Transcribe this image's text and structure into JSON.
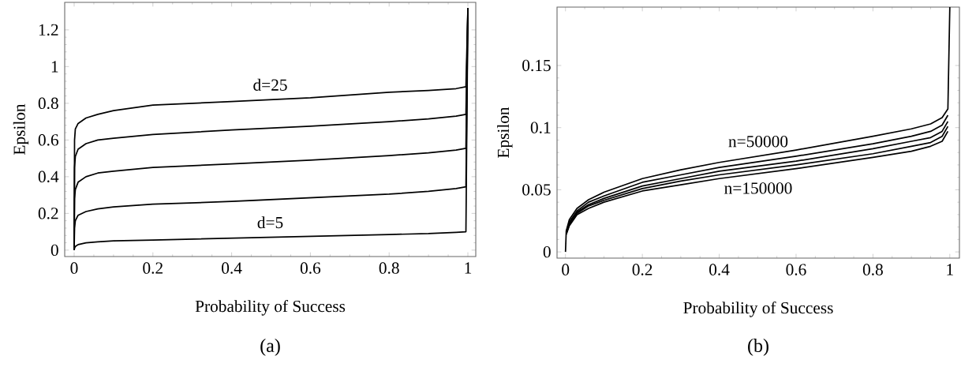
{
  "chart_data": [
    {
      "type": "line",
      "xlabel": "Probability of Success",
      "ylabel": "Epsilon",
      "xlim": [
        -0.024,
        1.02
      ],
      "ylim": [
        -0.035,
        1.35
      ],
      "xticks": [
        0,
        0.2,
        0.4,
        0.6,
        0.8,
        1
      ],
      "yticks": [
        0,
        0.2,
        0.4,
        0.6,
        0.8,
        1,
        1.2
      ],
      "grid": false,
      "marker": "none",
      "line_style": "solid",
      "x": [
        0,
        0.001,
        0.003,
        0.01,
        0.03,
        0.06,
        0.1,
        0.2,
        0.4,
        0.6,
        0.8,
        0.9,
        0.97,
        0.995,
        1
      ],
      "series": [
        {
          "name": "d=5",
          "color": "#000000",
          "values": [
            0,
            0.01,
            0.02,
            0.03,
            0.04,
            0.045,
            0.05,
            0.055,
            0.065,
            0.075,
            0.085,
            0.09,
            0.097,
            0.1,
            1.32
          ]
        },
        {
          "color": "#000000",
          "values": [
            0,
            0.12,
            0.16,
            0.19,
            0.21,
            0.225,
            0.235,
            0.25,
            0.265,
            0.285,
            0.305,
            0.32,
            0.335,
            0.345,
            1.32
          ]
        },
        {
          "color": "#000000",
          "values": [
            0,
            0.28,
            0.33,
            0.37,
            0.4,
            0.42,
            0.43,
            0.45,
            0.47,
            0.49,
            0.515,
            0.53,
            0.545,
            0.555,
            1.32
          ]
        },
        {
          "color": "#000000",
          "values": [
            0,
            0.45,
            0.51,
            0.55,
            0.58,
            0.6,
            0.61,
            0.63,
            0.655,
            0.675,
            0.7,
            0.715,
            0.73,
            0.74,
            1.32
          ]
        },
        {
          "name": "d=25",
          "color": "#000000",
          "values": [
            0,
            0.6,
            0.66,
            0.69,
            0.72,
            0.74,
            0.76,
            0.79,
            0.81,
            0.83,
            0.86,
            0.87,
            0.88,
            0.89,
            1.32
          ]
        }
      ],
      "annotations": [
        "(a)"
      ]
    },
    {
      "type": "line",
      "xlabel": "Probability of Success",
      "ylabel": "Epsilon",
      "xlim": [
        -0.022,
        1.025
      ],
      "ylim": [
        -0.005,
        0.197
      ],
      "xticks": [
        0,
        0.2,
        0.4,
        0.6,
        0.8,
        1
      ],
      "yticks": [
        0,
        0.05,
        0.1,
        0.15
      ],
      "grid": false,
      "marker": "none",
      "line_style": "solid",
      "x": [
        0,
        0.002,
        0.01,
        0.03,
        0.06,
        0.1,
        0.2,
        0.3,
        0.4,
        0.6,
        0.8,
        0.9,
        0.95,
        0.98,
        0.995,
        1
      ],
      "series": [
        {
          "name": "n=50000",
          "color": "#000000",
          "values": [
            0,
            0.017,
            0.026,
            0.035,
            0.042,
            0.048,
            0.059,
            0.066,
            0.072,
            0.082,
            0.093,
            0.099,
            0.103,
            0.108,
            0.115,
            0.197
          ]
        },
        {
          "color": "#000000",
          "values": [
            null,
            0.016,
            0.024,
            0.033,
            0.04,
            0.045,
            0.056,
            0.062,
            0.068,
            0.077,
            0.087,
            0.093,
            0.097,
            0.102,
            0.11,
            null
          ]
        },
        {
          "color": "#000000",
          "values": [
            null,
            0.015,
            0.023,
            0.032,
            0.038,
            0.043,
            0.053,
            0.059,
            0.065,
            0.073,
            0.083,
            0.089,
            0.092,
            0.097,
            0.105,
            null
          ]
        },
        {
          "color": "#000000",
          "values": [
            null,
            0.0145,
            0.022,
            0.031,
            0.037,
            0.0415,
            0.051,
            0.057,
            0.062,
            0.07,
            0.079,
            0.085,
            0.088,
            0.093,
            0.101,
            null
          ]
        },
        {
          "name": "n=150000",
          "color": "#000000",
          "values": [
            null,
            0.014,
            0.021,
            0.03,
            0.035,
            0.04,
            0.049,
            0.054,
            0.059,
            0.067,
            0.076,
            0.081,
            0.085,
            0.089,
            0.097,
            null
          ]
        }
      ],
      "annotations": [
        "(b)"
      ]
    }
  ]
}
